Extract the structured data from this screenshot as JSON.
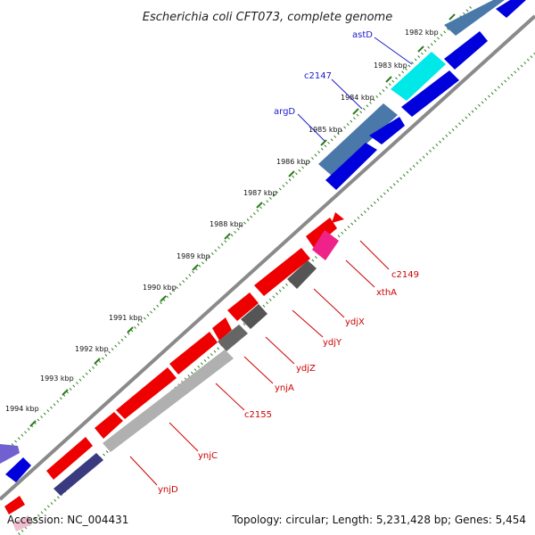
{
  "title": "Escherichia coli CFT073, complete genome",
  "footer": {
    "accession": "Accession: NC_004431",
    "summary": "Topology: circular; Length: 5,231,428 bp; Genes: 5,454"
  },
  "colors": {
    "forward_label": "#1a1acc",
    "reverse_label": "#cc0000",
    "gc_dots": "#2e7d1e",
    "backbone": "#7a7a7a"
  },
  "ticks": [
    "1982 kbp",
    "1983 kbp",
    "1984 kbp",
    "1985 kbp",
    "1986 kbp",
    "1987 kbp",
    "1988 kbp",
    "1989 kbp",
    "1990 kbp",
    "1991 kbp",
    "1992 kbp",
    "1993 kbp",
    "1994 kbp"
  ],
  "forward_labels": [
    "astD",
    "c2147",
    "argD"
  ],
  "reverse_labels": [
    "c2149",
    "xthA",
    "ydjX",
    "ydjY",
    "ydjZ",
    "ynjA",
    "c2155",
    "ynjC",
    "ynjD"
  ]
}
